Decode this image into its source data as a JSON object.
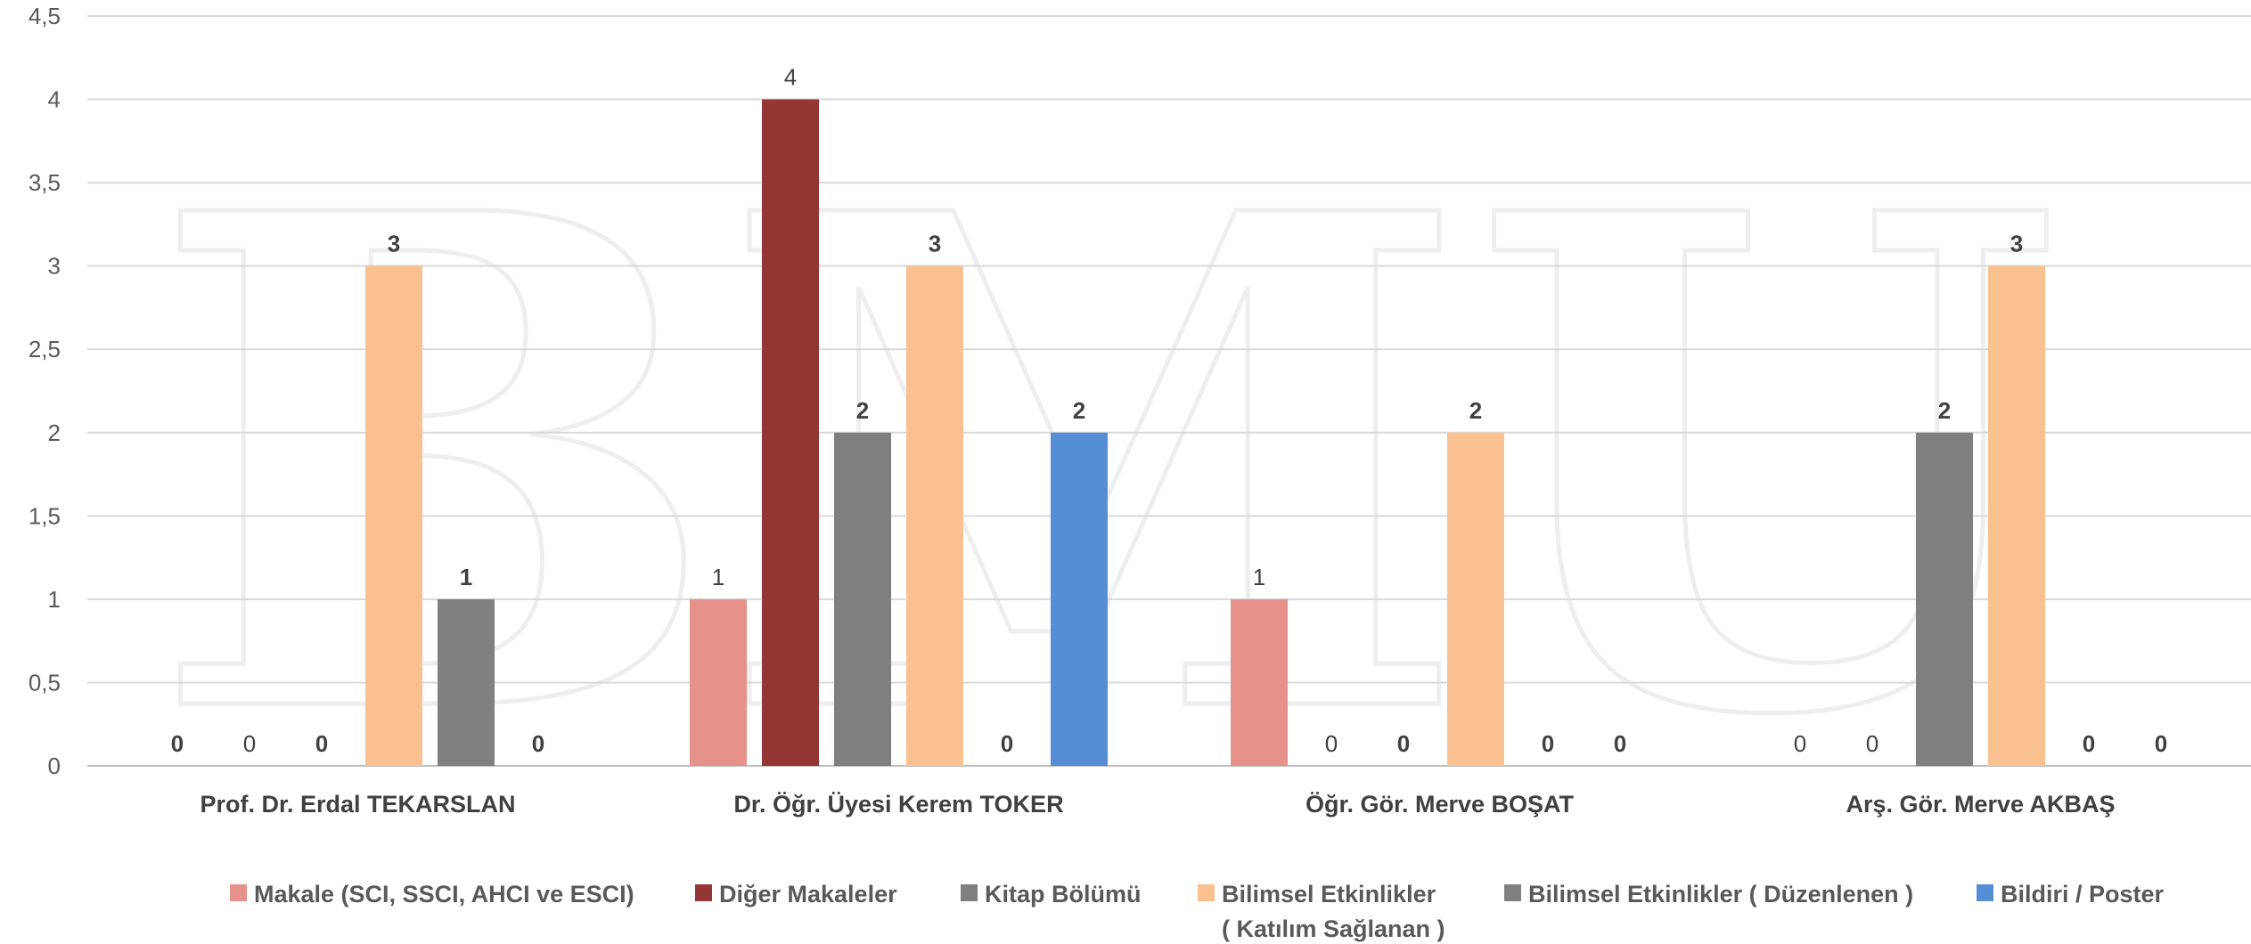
{
  "chart_data": {
    "type": "bar",
    "title": "",
    "xlabel": "",
    "ylabel": "",
    "ylim": [
      0,
      4.5
    ],
    "yticks": [
      "0",
      "0,5",
      "1",
      "1,5",
      "2",
      "2,5",
      "3",
      "3,5",
      "4",
      "4,5"
    ],
    "grid": true,
    "legend_position": "bottom",
    "categories": [
      "Prof. Dr. Erdal TEKARSLAN",
      "Dr. Öğr. Üyesi Kerem TOKER",
      "Öğr. Gör. Merve BOŞAT",
      "Arş. Gör. Merve AKBAŞ"
    ],
    "series": [
      {
        "name": "Makale (SCI, SSCI, AHCI ve ESCI)",
        "color": "#e6928a",
        "values": [
          0,
          1,
          1,
          0
        ],
        "value_labels": [
          "0",
          "1",
          "1",
          "0"
        ],
        "label_bold": [
          true,
          false,
          false,
          false
        ]
      },
      {
        "name": "Diğer Makaleler",
        "color": "#943634",
        "values": [
          0,
          4,
          0,
          0
        ],
        "value_labels": [
          "0",
          "4",
          "0",
          "0"
        ],
        "label_bold": [
          false,
          false,
          false,
          false
        ]
      },
      {
        "name": "Kitap Bölümü",
        "color": "#7f7f7f",
        "values": [
          0,
          2,
          0,
          2
        ],
        "value_labels": [
          "0",
          "2",
          "0",
          "2"
        ],
        "label_bold": [
          true,
          true,
          true,
          true
        ]
      },
      {
        "name": "Bilimsel Etkinlikler\n( Katılım Sağlanan )",
        "color": "#f9c090",
        "values": [
          3,
          3,
          2,
          3
        ],
        "value_labels": [
          "3",
          "3",
          "2",
          "3"
        ],
        "label_bold": [
          true,
          true,
          true,
          true
        ]
      },
      {
        "name": "Bilimsel Etkinlikler ( Düzenlenen )",
        "color": "#808080",
        "values": [
          1,
          0,
          0,
          0
        ],
        "value_labels": [
          "1",
          "0",
          "0",
          "0"
        ],
        "label_bold": [
          true,
          true,
          true,
          true
        ]
      },
      {
        "name": "Bildiri / Poster",
        "color": "#558ed5",
        "values": [
          0,
          2,
          0,
          0
        ],
        "value_labels": [
          "0",
          "2",
          "0",
          "0"
        ],
        "label_bold": [
          true,
          true,
          true,
          true
        ]
      }
    ]
  },
  "watermark": {
    "text": "BMU"
  }
}
